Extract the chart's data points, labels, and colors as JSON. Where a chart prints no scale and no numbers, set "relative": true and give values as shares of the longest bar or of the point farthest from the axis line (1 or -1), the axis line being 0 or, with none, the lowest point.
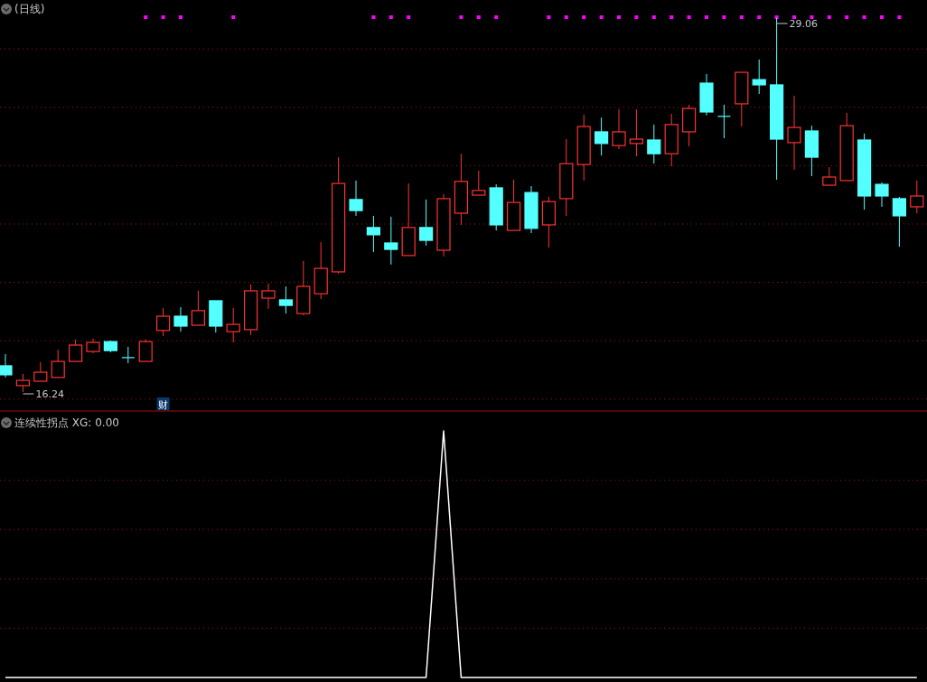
{
  "chart_data": [
    {
      "type": "candlestick",
      "title": "(日线)",
      "grid": "y",
      "yticks": [
        {
          "value": 16,
          "label": null
        },
        {
          "value": 18,
          "label": null
        },
        {
          "value": 20,
          "label": null
        },
        {
          "value": 22,
          "label": null
        },
        {
          "value": 24,
          "label": null
        },
        {
          "value": 26,
          "label": null
        },
        {
          "value": 28,
          "label": null
        }
      ],
      "categories": [
        null,
        null,
        null,
        null,
        null,
        null,
        null,
        null,
        null,
        null,
        null,
        null,
        null,
        null,
        null,
        null,
        null,
        null,
        null,
        null,
        null,
        null,
        null,
        null,
        null,
        null,
        null,
        null,
        null,
        null,
        null,
        null,
        null,
        null,
        null,
        null,
        null,
        null,
        null,
        null,
        null,
        null,
        null,
        null,
        null,
        null,
        null,
        null,
        null,
        null,
        null,
        null,
        null
      ],
      "ohlc": [
        [
          17.14,
          17.54,
          16.74,
          16.83
        ],
        [
          16.46,
          16.86,
          16.24,
          16.64
        ],
        [
          16.61,
          17.26,
          16.61,
          16.92
        ],
        [
          16.74,
          17.69,
          16.74,
          17.29
        ],
        [
          17.29,
          18.04,
          17.29,
          17.85
        ],
        [
          17.63,
          18.07,
          17.57,
          17.94
        ],
        [
          17.97,
          18.01,
          17.6,
          17.66
        ],
        [
          17.42,
          17.79,
          17.23,
          17.42
        ],
        [
          17.29,
          18.04,
          17.29,
          17.97
        ],
        [
          18.35,
          19.12,
          18.16,
          18.84
        ],
        [
          18.84,
          19.15,
          18.31,
          18.5
        ],
        [
          18.53,
          19.71,
          18.53,
          19.03
        ],
        [
          19.37,
          19.37,
          18.28,
          18.5
        ],
        [
          18.31,
          19.12,
          17.94,
          18.56
        ],
        [
          18.38,
          19.93,
          18.19,
          19.71
        ],
        [
          19.46,
          19.96,
          19.09,
          19.71
        ],
        [
          19.4,
          19.86,
          18.93,
          19.21
        ],
        [
          18.93,
          20.73,
          18.87,
          19.86
        ],
        [
          19.61,
          21.38,
          19.43,
          20.48
        ],
        [
          20.36,
          24.29,
          20.3,
          23.39
        ],
        [
          22.84,
          23.49,
          22.28,
          22.46
        ],
        [
          21.88,
          22.28,
          21.04,
          21.63
        ],
        [
          21.35,
          22.25,
          20.61,
          21.13
        ],
        [
          20.92,
          23.39,
          20.92,
          21.88
        ],
        [
          21.88,
          22.84,
          21.26,
          21.44
        ],
        [
          21.1,
          23.02,
          20.89,
          22.87
        ],
        [
          22.37,
          24.41,
          21.97,
          23.46
        ],
        [
          22.99,
          23.83,
          22.99,
          23.15
        ],
        [
          23.24,
          23.36,
          21.78,
          21.97
        ],
        [
          21.78,
          23.52,
          21.78,
          22.74
        ],
        [
          23.08,
          23.3,
          21.69,
          21.85
        ],
        [
          21.97,
          22.93,
          21.19,
          22.77
        ],
        [
          22.87,
          24.91,
          22.28,
          24.07
        ],
        [
          24.04,
          25.75,
          23.49,
          25.34
        ],
        [
          25.16,
          25.65,
          24.35,
          24.76
        ],
        [
          24.69,
          25.93,
          24.57,
          25.16
        ],
        [
          24.76,
          25.93,
          24.32,
          24.91
        ],
        [
          24.88,
          25.41,
          24.07,
          24.41
        ],
        [
          24.41,
          25.78,
          23.98,
          25.41
        ],
        [
          25.16,
          26.09,
          24.66,
          25.96
        ],
        [
          26.83,
          27.14,
          25.72,
          25.84
        ],
        [
          25.69,
          26.09,
          24.94,
          25.69
        ],
        [
          26.12,
          27.2,
          25.34,
          27.2
        ],
        [
          26.95,
          27.64,
          26.46,
          26.77
        ],
        [
          26.77,
          29.06,
          23.52,
          24.91
        ],
        [
          24.79,
          26.4,
          23.86,
          25.31
        ],
        [
          25.19,
          25.37,
          23.64,
          24.29
        ],
        [
          23.33,
          23.95,
          23.33,
          23.61
        ],
        [
          23.49,
          25.81,
          23.49,
          25.37
        ],
        [
          24.88,
          25.1,
          22.49,
          22.96
        ],
        [
          23.36,
          23.43,
          22.59,
          22.96
        ],
        [
          22.87,
          22.93,
          21.22,
          22.28
        ],
        [
          22.59,
          23.49,
          22.37,
          22.96
        ]
      ],
      "colors": [
        "#54ffff",
        "#ff3232",
        "#ff3232",
        "#ff3232",
        "#ff3232",
        "#ff3232",
        "#54ffff",
        "#54ffff",
        "#ff3232",
        "#ff3232",
        "#54ffff",
        "#ff3232",
        "#54ffff",
        "#ff3232",
        "#ff3232",
        "#ff3232",
        "#54ffff",
        "#ff3232",
        "#ff3232",
        "#ff3232",
        "#54ffff",
        "#54ffff",
        "#54ffff",
        "#ff3232",
        "#54ffff",
        "#ff3232",
        "#ff3232",
        "#ff3232",
        "#54ffff",
        "#ff3232",
        "#54ffff",
        "#ff3232",
        "#ff3232",
        "#ff3232",
        "#54ffff",
        "#ff3232",
        "#ff3232",
        "#54ffff",
        "#ff3232",
        "#ff3232",
        "#54ffff",
        "#54ffff",
        "#ff3232",
        "#54ffff",
        "#54ffff",
        "#ff3232",
        "#54ffff",
        "#ff3232",
        "#ff3232",
        "#54ffff",
        "#54ffff",
        "#54ffff",
        "#ff3232"
      ],
      "series": [
        {
          "type": "scatter",
          "marker": "square",
          "color": "#ff00ff",
          "values": [
            null,
            null,
            null,
            null,
            null,
            null,
            null,
            null,
            29.09,
            29.09,
            29.09,
            null,
            null,
            29.09,
            null,
            null,
            null,
            null,
            null,
            null,
            null,
            29.09,
            29.09,
            29.09,
            null,
            null,
            29.09,
            29.09,
            29.09,
            null,
            null,
            29.09,
            29.09,
            29.09,
            29.09,
            29.09,
            29.09,
            29.09,
            29.09,
            29.09,
            29.09,
            29.09,
            29.09,
            29.09,
            29.09,
            29.09,
            29.09,
            29.09,
            29.09,
            29.09,
            29.09,
            29.09,
            null
          ]
        }
      ],
      "annotations": [
        "16.24",
        "29.06",
        "财"
      ]
    },
    {
      "type": "line",
      "title": "连续性拐点 XG: 0.00",
      "relative": true,
      "ref_lines": [
        {
          "axis": "y",
          "value": 0.2,
          "color": "#a01010",
          "line_style": "dotted"
        },
        {
          "axis": "y",
          "value": 0.4,
          "color": "#a01010",
          "line_style": "dotted"
        },
        {
          "axis": "y",
          "value": 0.6,
          "color": "#a01010",
          "line_style": "dotted"
        },
        {
          "axis": "y",
          "value": 0.8,
          "color": "#a01010",
          "line_style": "dotted"
        }
      ],
      "categories": [
        null,
        null,
        null,
        null,
        null,
        null,
        null,
        null,
        null,
        null,
        null,
        null,
        null,
        null,
        null,
        null,
        null,
        null,
        null,
        null,
        null,
        null,
        null,
        null,
        null,
        null,
        null,
        null,
        null,
        null,
        null,
        null,
        null,
        null,
        null,
        null,
        null,
        null,
        null,
        null,
        null,
        null,
        null,
        null,
        null,
        null,
        null,
        null,
        null,
        null,
        null,
        null,
        null
      ],
      "series": [
        {
          "color": "#ffffff",
          "values": [
            0,
            0,
            0,
            0,
            0,
            0,
            0,
            0,
            0,
            0,
            0,
            0,
            0,
            0,
            0,
            0,
            0,
            0,
            0,
            0,
            0,
            0,
            0,
            0,
            0,
            1,
            0,
            0,
            0,
            0,
            0,
            0,
            0,
            0,
            0,
            0,
            0,
            0,
            0,
            0,
            0,
            0,
            0,
            0,
            0,
            0,
            0,
            0,
            0,
            0,
            0,
            0,
            0
          ]
        }
      ]
    }
  ]
}
